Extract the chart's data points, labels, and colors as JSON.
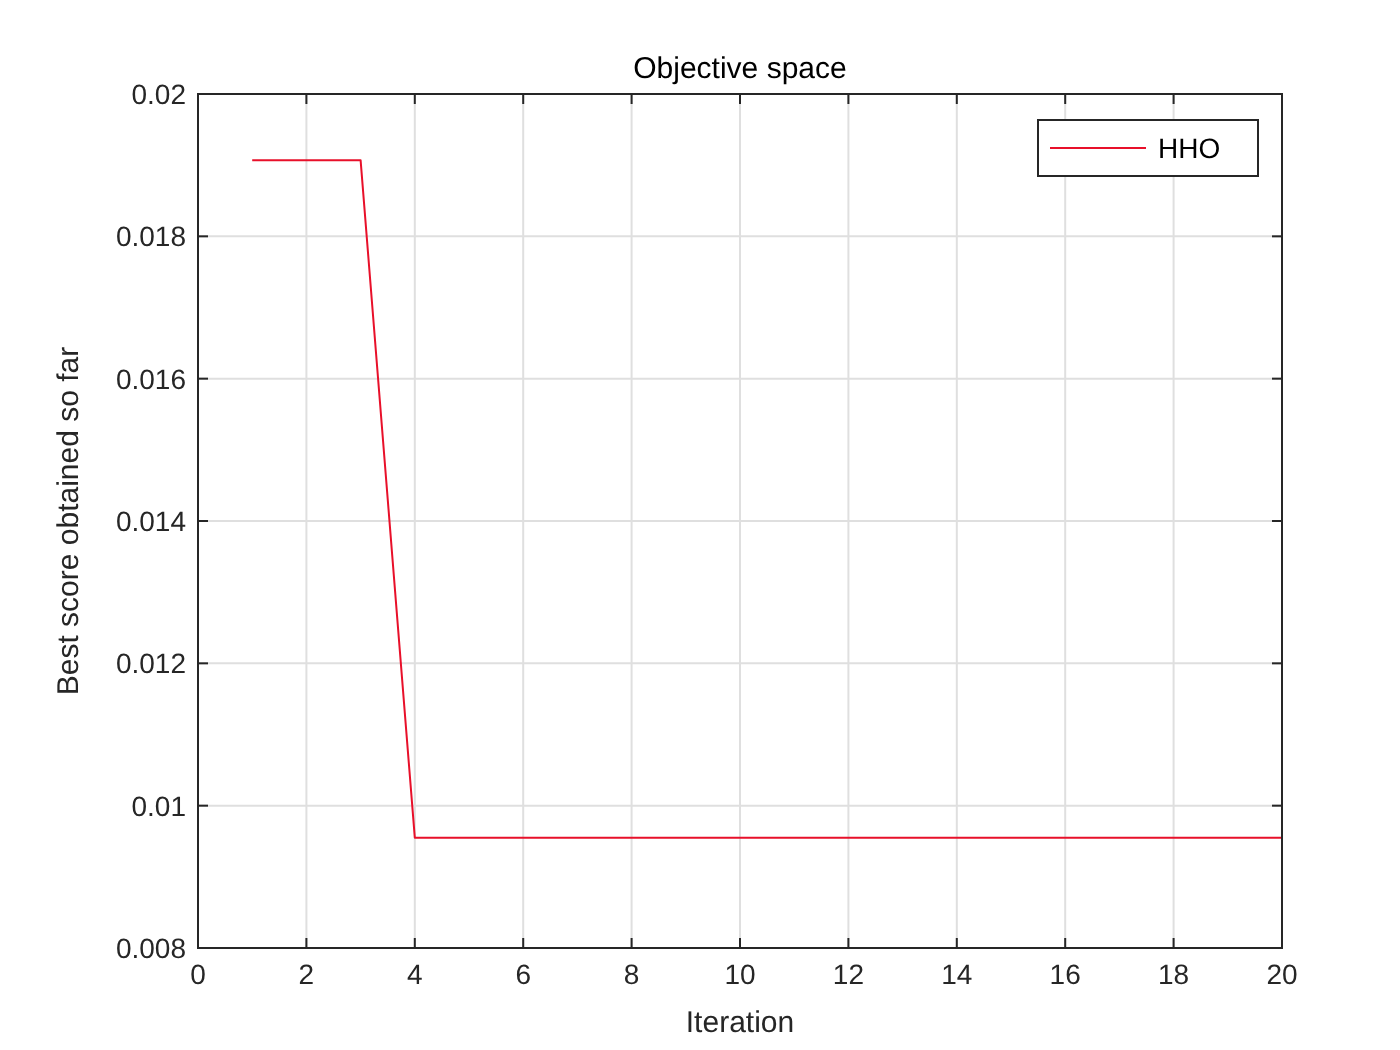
{
  "chart_data": {
    "type": "line",
    "title": "Objective space",
    "xlabel": "Iteration",
    "ylabel": "Best score obtained so far",
    "x": [
      1,
      2,
      3,
      4,
      5,
      6,
      7,
      8,
      9,
      10,
      11,
      12,
      13,
      14,
      15,
      16,
      17,
      18,
      19,
      20
    ],
    "series": [
      {
        "name": "HHO",
        "color": "#e8102a",
        "values": [
          0.01907,
          0.01907,
          0.01907,
          0.00955,
          0.00955,
          0.00955,
          0.00955,
          0.00955,
          0.00955,
          0.00955,
          0.00955,
          0.00955,
          0.00955,
          0.00955,
          0.00955,
          0.00955,
          0.00955,
          0.00955,
          0.00955,
          0.00955
        ]
      }
    ],
    "xlim": [
      0,
      20
    ],
    "xticks": [
      0,
      2,
      4,
      6,
      8,
      10,
      12,
      14,
      16,
      18,
      20
    ],
    "ylim": [
      0.008,
      0.02
    ],
    "yticks": [
      0.008,
      0.01,
      0.012,
      0.014,
      0.016,
      0.018,
      0.02
    ],
    "grid": true,
    "legend": "top right",
    "line_style": "solid",
    "marker": "none"
  }
}
